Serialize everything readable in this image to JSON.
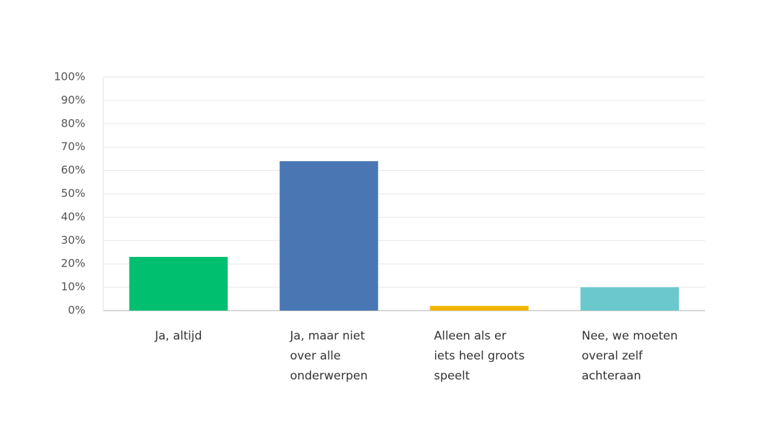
{
  "chart_data": {
    "type": "bar",
    "categories": [
      "Ja, altijd",
      "Ja, maar niet over alle onderwerpen",
      "Alleen als er iets heel groots speelt",
      "Nee, we moeten overal zelf achteraan"
    ],
    "values": [
      23,
      64,
      2,
      10
    ],
    "colors": [
      "#00bf6f",
      "#4a77b4",
      "#f0b400",
      "#6bc8cd"
    ],
    "ylim": [
      0,
      100
    ],
    "yticks": [
      {
        "value": 0,
        "label": "0%"
      },
      {
        "value": 10,
        "label": "10%"
      },
      {
        "value": 20,
        "label": "20%"
      },
      {
        "value": 30,
        "label": "30%"
      },
      {
        "value": 40,
        "label": "40%"
      },
      {
        "value": 50,
        "label": "50%"
      },
      {
        "value": 60,
        "label": "60%"
      },
      {
        "value": 70,
        "label": "70%"
      },
      {
        "value": 80,
        "label": "80%"
      },
      {
        "value": 90,
        "label": "90%"
      },
      {
        "value": 100,
        "label": "100%"
      }
    ],
    "grid": true
  }
}
